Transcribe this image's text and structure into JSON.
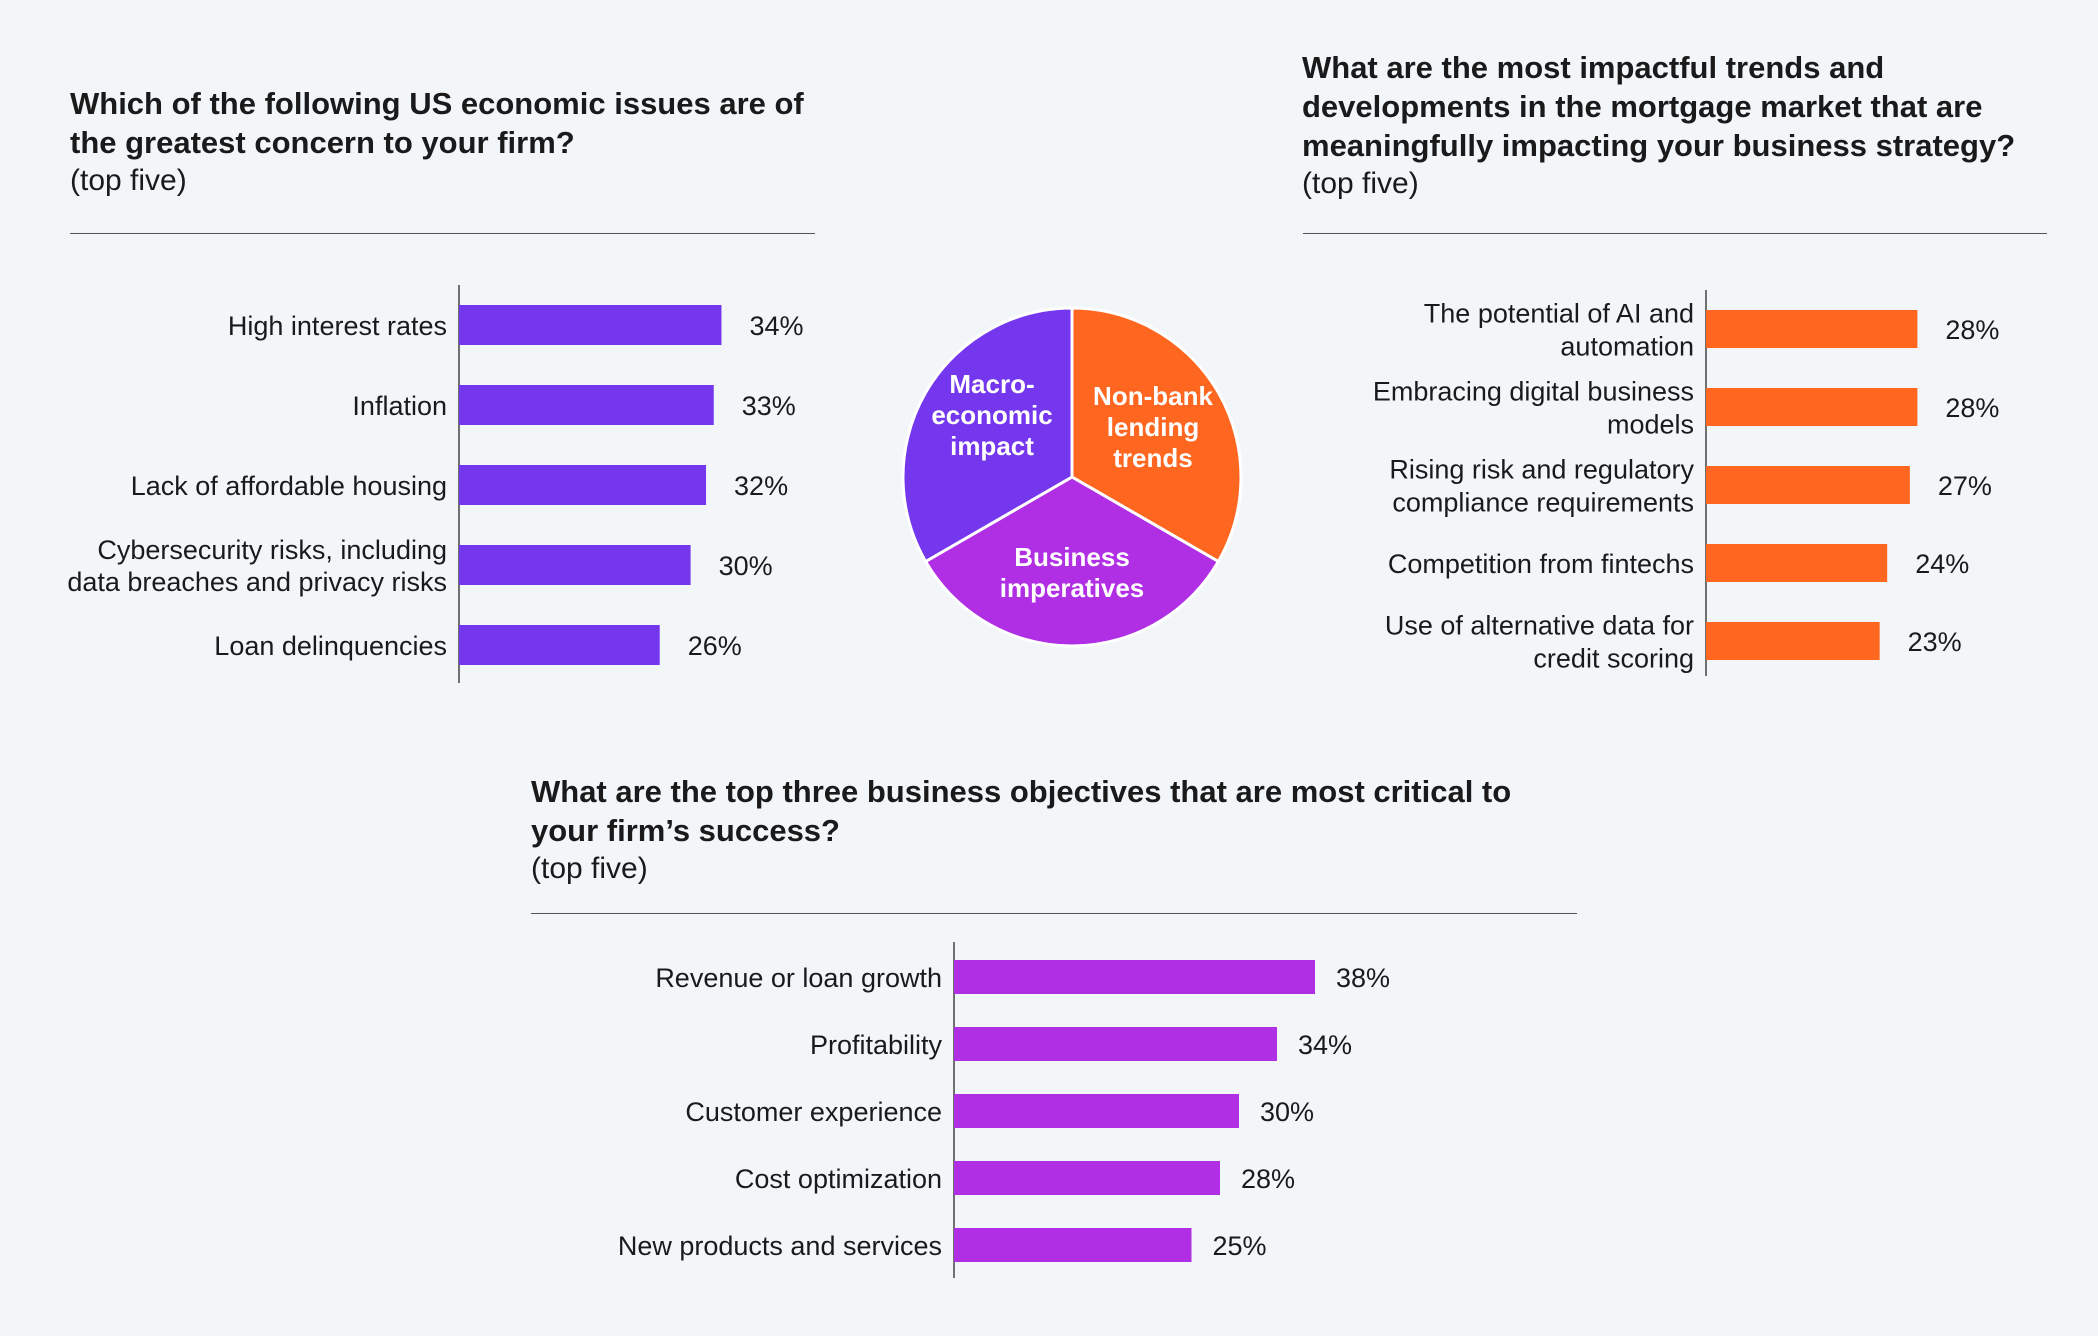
{
  "chart_data": [
    {
      "type": "bar",
      "title": "Which of the following US economic issues are of the greatest concern to your firm?",
      "subtitle": "(top five)",
      "categories": [
        [
          "High interest rates"
        ],
        [
          "Inflation"
        ],
        [
          "Lack of affordable housing"
        ],
        [
          "Cybersecurity risks, including",
          "data breaches and privacy risks"
        ],
        [
          "Loan delinquencies"
        ]
      ],
      "values": [
        34,
        33,
        32,
        30,
        26
      ],
      "value_labels": [
        "34%",
        "33%",
        "32%",
        "30%",
        "26%"
      ],
      "color": "#7437ee",
      "orientation": "horizontal"
    },
    {
      "type": "bar",
      "title": "What are the most impactful trends and developments in the mortgage market that are meaningfully impacting your business strategy?",
      "subtitle": "(top five)",
      "categories": [
        [
          "The potential of AI and",
          "automation"
        ],
        [
          "Embracing digital business",
          "models"
        ],
        [
          "Rising risk and regulatory",
          "compliance requirements"
        ],
        [
          "Competition from fintechs"
        ],
        [
          "Use of alternative data for",
          "credit scoring"
        ]
      ],
      "values": [
        28,
        28,
        27,
        24,
        23
      ],
      "value_labels": [
        "28%",
        "28%",
        "27%",
        "24%",
        "23%"
      ],
      "color": "#ff6720",
      "orientation": "horizontal"
    },
    {
      "type": "bar",
      "title": "What are the top three business objectives that are most critical to your firm’s success?",
      "subtitle": "(top five)",
      "categories": [
        [
          "Revenue or loan growth"
        ],
        [
          "Profitability"
        ],
        [
          "Customer experience"
        ],
        [
          "Cost optimization"
        ],
        [
          "New products and services"
        ]
      ],
      "values": [
        38,
        34,
        30,
        28,
        25
      ],
      "value_labels": [
        "38%",
        "34%",
        "30%",
        "28%",
        "25%"
      ],
      "color": "#b02ee3",
      "orientation": "horizontal"
    },
    {
      "type": "pie",
      "slices": [
        {
          "label": [
            "Non-bank",
            "lending",
            "trends"
          ],
          "value": 1,
          "color": "#ff6720"
        },
        {
          "label": [
            "Business",
            "imperatives"
          ],
          "value": 1,
          "color": "#b02ee3"
        },
        {
          "label": [
            "Macro-",
            "economic",
            "impact"
          ],
          "value": 1,
          "color": "#7437ee"
        }
      ]
    }
  ]
}
